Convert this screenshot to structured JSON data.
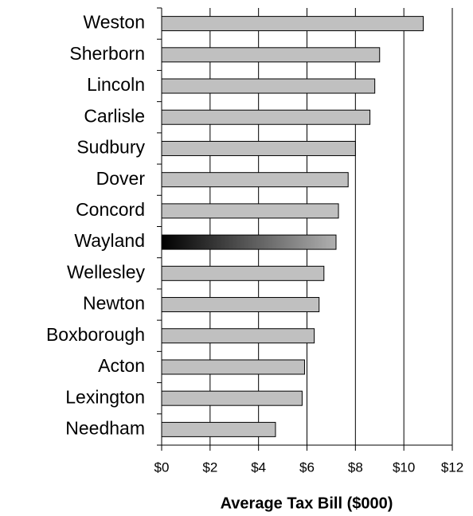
{
  "chart_data": {
    "type": "barh",
    "x_label": "Average Tax Bill ($000)",
    "categories": [
      "Weston",
      "Sherborn",
      "Lincoln",
      "Carlisle",
      "Sudbury",
      "Dover",
      "Concord",
      "Wayland",
      "Wellesley",
      "Newton",
      "Boxborough",
      "Acton",
      "Lexington",
      "Needham"
    ],
    "values": [
      10.8,
      9.0,
      8.8,
      8.6,
      8.0,
      7.7,
      7.3,
      7.2,
      6.7,
      6.5,
      6.3,
      5.9,
      5.8,
      4.7
    ],
    "color": "#c0c0c0",
    "highlight_index": 7,
    "highlight_color": "#000000",
    "xlim": [
      0,
      12
    ],
    "xticks": [
      {
        "value": 0,
        "label": "$0"
      },
      {
        "value": 2,
        "label": "$2"
      },
      {
        "value": 4,
        "label": "$4"
      },
      {
        "value": 6,
        "label": "$6"
      },
      {
        "value": 8,
        "label": "$8"
      },
      {
        "value": 10,
        "label": "$10"
      },
      {
        "value": 12,
        "label": "$12"
      }
    ],
    "grid": true
  }
}
